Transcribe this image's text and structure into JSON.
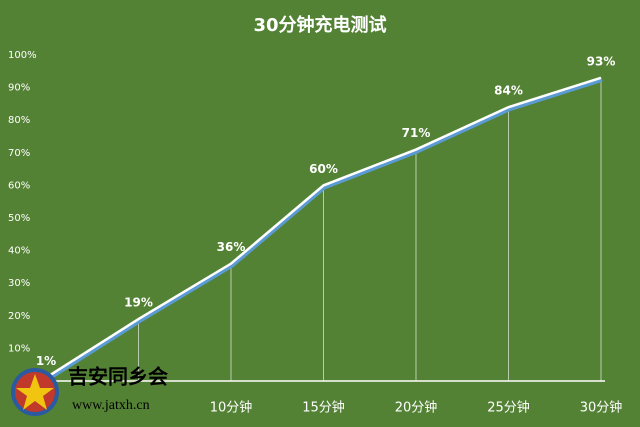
{
  "chart_data": {
    "type": "line",
    "title": "30分钟充电测试",
    "categories": [
      null,
      null,
      "10分钟",
      "15分钟",
      "20分钟",
      "25分钟",
      "30分钟"
    ],
    "values": [
      1,
      19,
      36,
      60,
      71,
      84,
      93
    ],
    "value_labels": [
      "1%",
      "19%",
      "36%",
      "60%",
      "71%",
      "84%",
      "93%"
    ],
    "color": "#ffffff",
    "ylim": [
      0,
      100
    ],
    "yticks": [
      {
        "value": 10,
        "label": "10%"
      },
      {
        "value": 20,
        "label": "20%"
      },
      {
        "value": 30,
        "label": "30%"
      },
      {
        "value": 40,
        "label": "40%"
      },
      {
        "value": 50,
        "label": "50%"
      },
      {
        "value": 60,
        "label": "60%"
      },
      {
        "value": 70,
        "label": "70%"
      },
      {
        "value": 80,
        "label": "80%"
      },
      {
        "value": 90,
        "label": "90%"
      },
      {
        "value": 100,
        "label": "100%"
      }
    ],
    "drop_lines": true
  },
  "watermark": {
    "name": "吉安同乡会",
    "url": "www.jatxh.cn"
  }
}
